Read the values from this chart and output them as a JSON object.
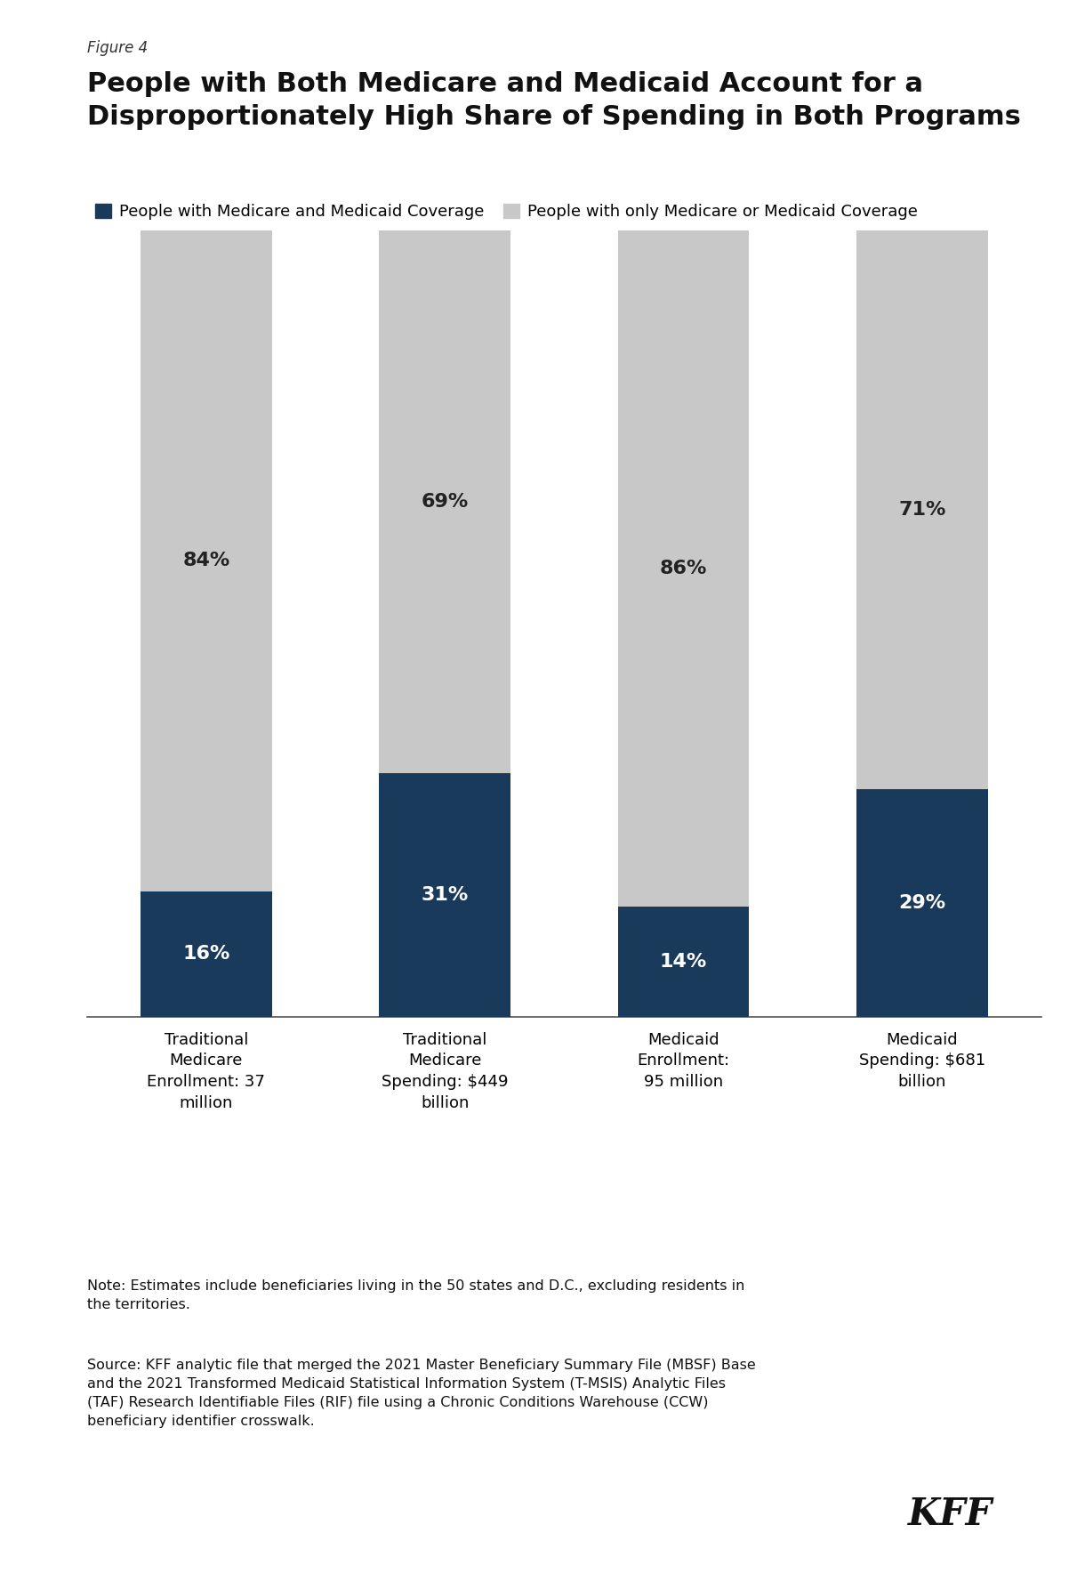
{
  "figure_label": "Figure 4",
  "title": "People with Both Medicare and Medicaid Account for a\nDisproportionately High Share of Spending in Both Programs",
  "title_fontsize": 22,
  "legend_label1": "People with Medicare and Medicaid Coverage",
  "legend_label2": "People with only Medicare or Medicaid Coverage",
  "color_blue": "#1a3a5c",
  "color_gray": "#c8c8c8",
  "categories": [
    "Traditional\nMedicare\nEnrollment: 37\nmillion",
    "Traditional\nMedicare\nSpending: $449\nbillion",
    "Medicaid\nEnrollment:\n95 million",
    "Medicaid\nSpending: $681\nbillion"
  ],
  "blue_values": [
    16,
    31,
    14,
    29
  ],
  "gray_values": [
    84,
    69,
    86,
    71
  ],
  "blue_labels": [
    "16%",
    "31%",
    "14%",
    "29%"
  ],
  "gray_labels": [
    "84%",
    "69%",
    "86%",
    "71%"
  ],
  "note_text": "Note: Estimates include beneficiaries living in the 50 states and D.C., excluding residents in\nthe territories.",
  "source_text": "Source: KFF analytic file that merged the 2021 Master Beneficiary Summary File (MBSF) Base\nand the 2021 Transformed Medicaid Statistical Information System (T-MSIS) Analytic Files\n(TAF) Research Identifiable Files (RIF) file using a Chronic Conditions Warehouse (CCW)\nbeneficiary identifier crosswalk.",
  "background_color": "#ffffff",
  "bar_width": 0.55
}
